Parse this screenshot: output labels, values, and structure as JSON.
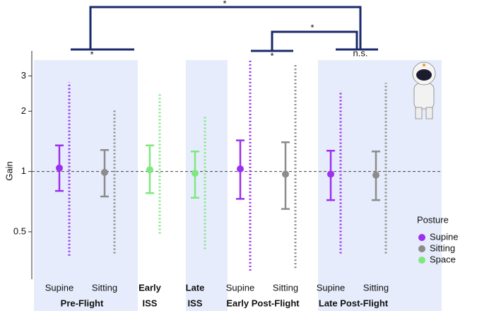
{
  "chart_data": {
    "type": "errorbar",
    "y_label": "Gain",
    "log_scale": true,
    "ylim": [
      0.29,
      4
    ],
    "yticks": [
      0.5,
      1,
      2,
      3
    ],
    "reference_line": 1,
    "categories": [
      "Supine",
      "Sitting",
      "Early",
      "Late",
      "Supine",
      "Sitting",
      "Supine",
      "Sitting"
    ],
    "group_labels": [
      "Pre-Flight",
      "ISS",
      "ISS",
      "Early Post-Flight",
      "Late Post-Flight"
    ],
    "colors": [
      "#9b30f0",
      "#8c8c8c",
      "#7ee87e",
      "#7ee87e",
      "#9b30f0",
      "#8c8c8c",
      "#9b30f0",
      "#8c8c8c"
    ],
    "values": [
      1.04,
      0.99,
      1.02,
      0.98,
      1.03,
      0.97,
      0.97,
      0.96
    ],
    "ci_low": [
      0.8,
      0.75,
      0.78,
      0.74,
      0.73,
      0.65,
      0.72,
      0.72
    ],
    "ci_high": [
      1.35,
      1.28,
      1.35,
      1.26,
      1.43,
      1.4,
      1.27,
      1.26
    ],
    "range_min": [
      0.38,
      0.39,
      0.49,
      0.41,
      0.32,
      0.33,
      0.39,
      0.39
    ],
    "range_max": [
      2.79,
      2.03,
      2.49,
      1.92,
      3.65,
      3.45,
      2.53,
      2.77
    ],
    "legend": {
      "title": "Posture",
      "entries": [
        {
          "name": "Supine",
          "color": "#9b30f0"
        },
        {
          "name": "Sitting",
          "color": "#8c8c8c"
        },
        {
          "name": "Space",
          "color": "#7ee87e"
        }
      ]
    },
    "annotations": [
      "*",
      "*",
      "*",
      "*",
      "n.s."
    ]
  }
}
